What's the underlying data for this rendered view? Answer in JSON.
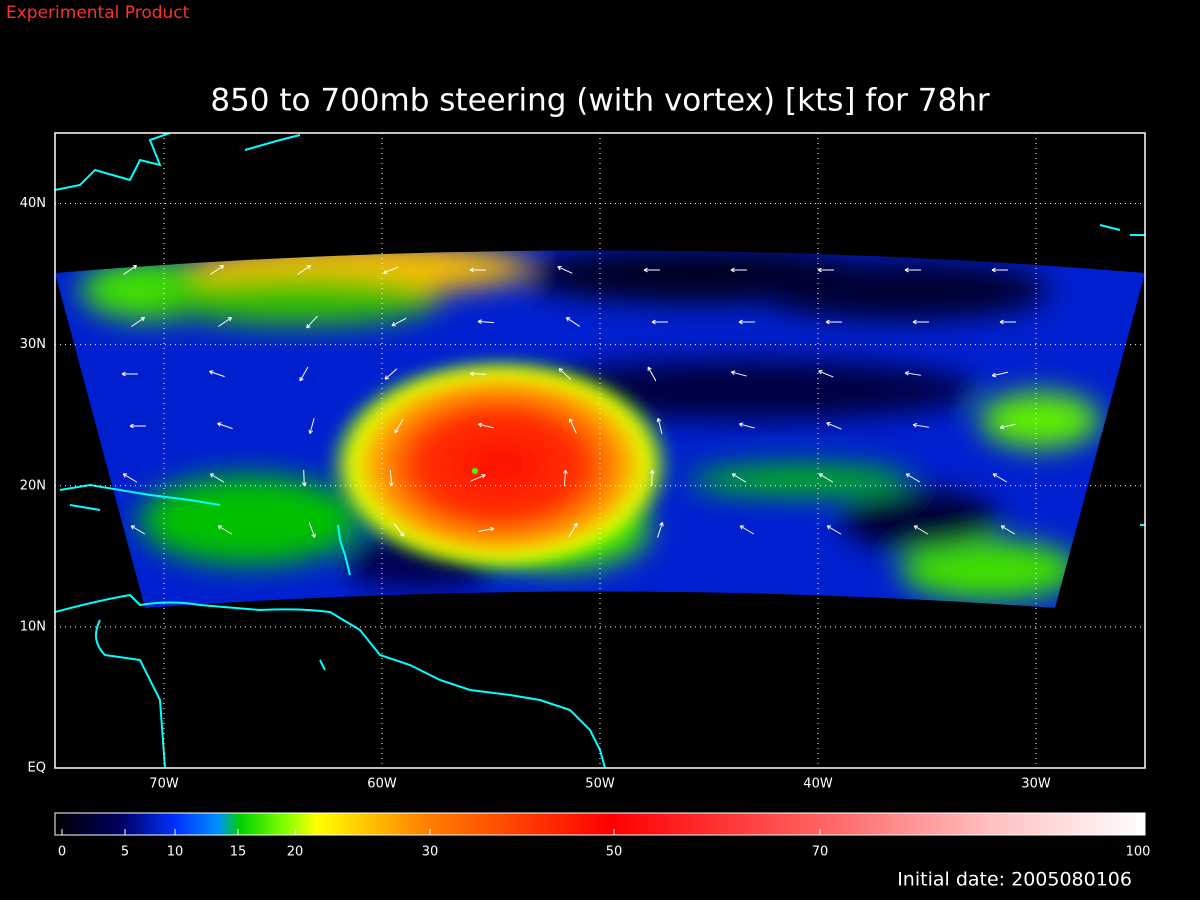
{
  "header": {
    "product": "Experimental Product"
  },
  "map": {
    "type": "map",
    "title": "850 to 700mb steering (with vortex) [kts] for 78hr",
    "xlim": [
      -75,
      -25
    ],
    "xticks": [
      {
        "value": -70,
        "label": "70W"
      },
      {
        "value": -60,
        "label": "60W"
      },
      {
        "value": -50,
        "label": "50W"
      },
      {
        "value": -40,
        "label": "40W"
      },
      {
        "value": -30,
        "label": "30W"
      }
    ],
    "ylim": [
      0,
      45
    ],
    "yticks": [
      {
        "value": 0,
        "label": "EQ"
      },
      {
        "value": 10,
        "label": "10N"
      },
      {
        "value": 20,
        "label": "20N"
      },
      {
        "value": 30,
        "label": "30N"
      },
      {
        "value": 40,
        "label": "40N"
      }
    ],
    "grid": true
  },
  "colorbar": {
    "ticks": [
      0,
      5,
      10,
      15,
      20,
      30,
      50,
      70,
      100
    ]
  },
  "footer": {
    "initial_date": "Initial date: 2005080106"
  }
}
